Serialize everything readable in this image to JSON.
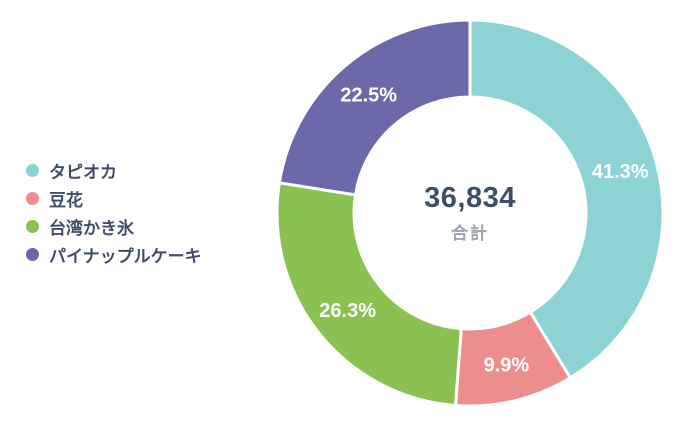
{
  "chart_data": {
    "type": "pie",
    "variant": "donut",
    "direction": "clockwise",
    "start_angle_deg": 0,
    "legend_position": "left",
    "center": {
      "total": "36,834",
      "caption": "合計"
    },
    "slices": [
      {
        "id": "tapioca",
        "label": "タピオカ",
        "value": 41.3,
        "percent_label": "41.3%",
        "color": "#8ed3d4"
      },
      {
        "id": "douhua",
        "label": "豆花",
        "value": 9.9,
        "percent_label": "9.9%",
        "color": "#ec8e8d"
      },
      {
        "id": "taiwan-kakigori",
        "label": "台湾かき氷",
        "value": 26.3,
        "percent_label": "26.3%",
        "color": "#8bc053"
      },
      {
        "id": "pineapple-cake",
        "label": "パイナップルケーキ",
        "value": 22.5,
        "percent_label": "22.5%",
        "color": "#6b69a9"
      }
    ]
  }
}
